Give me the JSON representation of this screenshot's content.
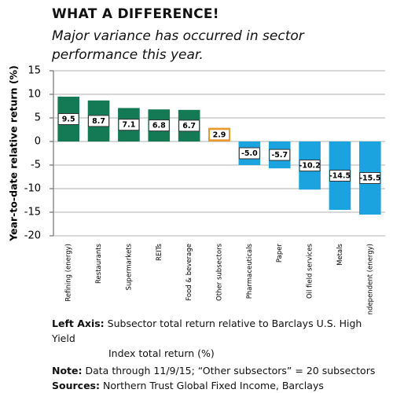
{
  "chart_data": {
    "type": "bar",
    "title": "WHAT A DIFFERENCE!",
    "subtitle": "Major variance has occurred in sector performance this year.",
    "y_label": "Year-to-date relative return (%)",
    "categories": [
      "Refining (energy)",
      "Restaurants",
      "Supermarkets",
      "REITs",
      "Food & beverage",
      "Other subsectors",
      "Pharmaceuticals",
      "Paper",
      "Oil field services",
      "Metals",
      "Independent (energy)"
    ],
    "values": [
      9.5,
      8.7,
      7.1,
      6.8,
      6.7,
      2.9,
      -5.0,
      -5.7,
      -10.2,
      -14.5,
      -15.5
    ],
    "value_labels": [
      "9.5",
      "8.7",
      "7.1",
      "6.8",
      "6.7",
      "2.9",
      "-5.0",
      "-5.7",
      "-10.2",
      "-14.5",
      "-15.5"
    ],
    "colors": [
      "#137a55",
      "#137a55",
      "#137a55",
      "#137a55",
      "#137a55",
      "#e89a2c",
      "#1aa3df",
      "#1aa3df",
      "#1aa3df",
      "#1aa3df",
      "#1aa3df"
    ],
    "ylim": [
      -20,
      15
    ],
    "yticks": [
      -20,
      -15,
      -10,
      -5,
      0,
      5,
      10,
      15
    ],
    "grid": true,
    "notes": [
      {
        "label": "Left Axis:",
        "text": "Subsector total return relative to Barclays U.S. High Yield",
        "text2": "Index total return (%)"
      },
      {
        "label": "Note:",
        "text": "Data through 11/9/15; “Other subsectors” = 20 subsectors"
      },
      {
        "label": "Sources:",
        "text": "Northern Trust Global Fixed Income, Barclays"
      }
    ]
  }
}
